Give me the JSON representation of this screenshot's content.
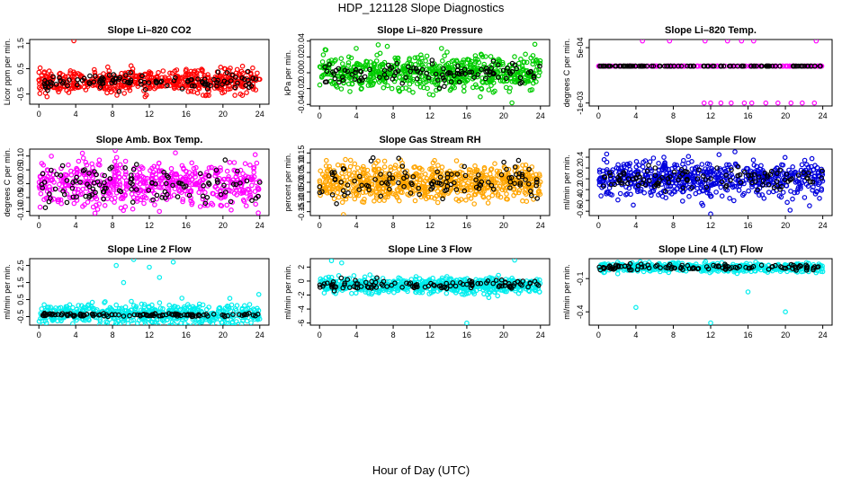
{
  "page": {
    "title": "HDP_121128  Slope Diagnostics",
    "xlabel": "Hour of Day (UTC)"
  },
  "chart_data": [
    {
      "type": "scatter",
      "title": "Slope Li–820 CO2",
      "ylabel": "Licor ppm per min.",
      "ylim": [
        -0.9,
        1.65
      ],
      "yticks": [
        -0.5,
        0.5,
        1.5
      ],
      "yticklabels": [
        "-0.5",
        "0.5",
        "1.5"
      ],
      "xlim": [
        -1,
        25
      ],
      "xticks": [
        0,
        4,
        8,
        12,
        16,
        20,
        24
      ],
      "xticklabels": [
        "0",
        "4",
        "8",
        "12",
        "16",
        "20",
        "24"
      ],
      "series": [
        {
          "color": "#ff0000",
          "center": 0.0,
          "spread": 0.22,
          "n": 520
        },
        {
          "color": "#000000",
          "center": 0.0,
          "spread": 0.15,
          "n": 110
        }
      ],
      "outliers": [
        {
          "x": 3.8,
          "y": 1.6,
          "color": "#ff0000"
        },
        {
          "x": 21.3,
          "y": -0.55,
          "color": "#ff0000"
        }
      ]
    },
    {
      "type": "scatter",
      "title": "Slope Li–820 Pressure",
      "ylabel": "kPa per min.",
      "ylim": [
        -0.042,
        0.042
      ],
      "yticks": [
        -0.04,
        -0.02,
        0.0,
        0.02,
        0.04
      ],
      "yticklabels": [
        "-0.04",
        "-0.02",
        "0.00",
        "0.02",
        "0.04"
      ],
      "xlim": [
        -1,
        25
      ],
      "xticks": [
        0,
        4,
        8,
        12,
        16,
        20,
        24
      ],
      "xticklabels": [
        "0",
        "4",
        "8",
        "12",
        "16",
        "20",
        "24"
      ],
      "series": [
        {
          "color": "#00cc00",
          "center": 0.0,
          "spread": 0.011,
          "n": 620
        },
        {
          "color": "#000000",
          "center": 0.0,
          "spread": 0.007,
          "n": 110
        }
      ],
      "outliers": [
        {
          "x": 23.4,
          "y": 0.036,
          "color": "#00cc00"
        },
        {
          "x": 20.9,
          "y": -0.038,
          "color": "#00cc00"
        }
      ]
    },
    {
      "type": "scatter",
      "title": "Slope Li–820 Temp.",
      "ylabel": "degrees C per min.",
      "ylim": [
        -0.00108,
        0.00072
      ],
      "yticks": [
        -0.001,
        0.0005
      ],
      "yticklabels": [
        "-1e-03",
        "5e-04"
      ],
      "xlim": [
        -1,
        25
      ],
      "xticks": [
        0,
        4,
        8,
        12,
        16,
        20,
        24
      ],
      "xticklabels": [
        "0",
        "4",
        "8",
        "12",
        "16",
        "20",
        "24"
      ],
      "series": [
        {
          "color": "#ff00ff",
          "center": 0.0,
          "spread": 0.0,
          "n": 160
        },
        {
          "color": "#000000",
          "center": 0.0,
          "spread": 0.0,
          "n": 110
        }
      ],
      "outliers": [
        {
          "x": 4.7,
          "y": 0.00068,
          "color": "#ff00ff"
        },
        {
          "x": 7.6,
          "y": 0.00068,
          "color": "#ff00ff"
        },
        {
          "x": 11.4,
          "y": 0.00068,
          "color": "#ff00ff"
        },
        {
          "x": 13.8,
          "y": 0.00068,
          "color": "#ff00ff"
        },
        {
          "x": 15.3,
          "y": 0.00068,
          "color": "#ff00ff"
        },
        {
          "x": 16.6,
          "y": 0.00068,
          "color": "#ff00ff"
        },
        {
          "x": 23.3,
          "y": 0.00068,
          "color": "#ff00ff"
        },
        {
          "x": 11.3,
          "y": -0.001,
          "color": "#ff00ff"
        },
        {
          "x": 12.0,
          "y": -0.001,
          "color": "#ff00ff"
        },
        {
          "x": 13.1,
          "y": -0.001,
          "color": "#ff00ff"
        },
        {
          "x": 14.2,
          "y": -0.001,
          "color": "#ff00ff"
        },
        {
          "x": 15.6,
          "y": -0.001,
          "color": "#ff00ff"
        },
        {
          "x": 16.4,
          "y": -0.001,
          "color": "#ff00ff"
        },
        {
          "x": 17.9,
          "y": -0.001,
          "color": "#ff00ff"
        },
        {
          "x": 19.2,
          "y": -0.001,
          "color": "#ff00ff"
        },
        {
          "x": 20.6,
          "y": -0.001,
          "color": "#ff00ff"
        },
        {
          "x": 21.8,
          "y": -0.001,
          "color": "#ff00ff"
        },
        {
          "x": 23.1,
          "y": -0.001,
          "color": "#ff00ff"
        }
      ]
    },
    {
      "type": "scatter",
      "title": "Slope Amb. Box Temp.",
      "ylabel": "degrees C per min.",
      "ylim": [
        -0.115,
        0.125
      ],
      "yticks": [
        -0.1,
        -0.05,
        0.0,
        0.05,
        0.1
      ],
      "yticklabels": [
        "-0.10",
        "-0.05",
        "0.00",
        "0.05",
        "0.10"
      ],
      "xlim": [
        -1,
        25
      ],
      "xticks": [
        0,
        4,
        8,
        12,
        16,
        20,
        24
      ],
      "xticklabels": [
        "0",
        "4",
        "8",
        "12",
        "16",
        "20",
        "24"
      ],
      "series": [
        {
          "color": "#ff00ff",
          "center": 0.0,
          "spread": 0.04,
          "n": 560
        },
        {
          "color": "#000000",
          "center": 0.0,
          "spread": 0.035,
          "n": 110
        }
      ],
      "outliers": [
        {
          "x": 8.3,
          "y": 0.12,
          "color": "#ff00ff"
        },
        {
          "x": 23.5,
          "y": 0.105,
          "color": "#ff00ff"
        }
      ]
    },
    {
      "type": "scatter",
      "title": "Slope Gas Stream RH",
      "ylabel": "percent per min.",
      "ylim": [
        -0.17,
        0.17
      ],
      "yticks": [
        -0.15,
        -0.1,
        -0.05,
        0.0,
        0.05,
        0.1,
        0.15
      ],
      "yticklabels": [
        "-0.15",
        "-0.10",
        "-0.05",
        "0.00",
        "0.05",
        "0.10",
        "0.15"
      ],
      "xlim": [
        -1,
        25
      ],
      "xticks": [
        0,
        4,
        8,
        12,
        16,
        20,
        24
      ],
      "xticklabels": [
        "0",
        "4",
        "8",
        "12",
        "16",
        "20",
        "24"
      ],
      "series": [
        {
          "color": "#ffa500",
          "center": 0.0,
          "spread": 0.045,
          "n": 720
        },
        {
          "color": "#000000",
          "center": 0.0,
          "spread": 0.045,
          "n": 110
        }
      ],
      "outliers": [
        {
          "x": 2.6,
          "y": -0.165,
          "color": "#ffa500"
        }
      ]
    },
    {
      "type": "scatter",
      "title": "Slope Sample Flow",
      "ylabel": "ml/min per min.",
      "ylim": [
        -0.68,
        0.55
      ],
      "yticks": [
        -0.6,
        -0.4,
        -0.2,
        0.0,
        0.2,
        0.4
      ],
      "yticklabels": [
        "-0.6",
        "-0.4",
        "-0.2",
        "0.0",
        "0.2",
        "0.4"
      ],
      "xlim": [
        -1,
        25
      ],
      "xticks": [
        0,
        4,
        8,
        12,
        16,
        20,
        24
      ],
      "xticklabels": [
        "0",
        "4",
        "8",
        "12",
        "16",
        "20",
        "24"
      ],
      "series": [
        {
          "color": "#0000dd",
          "center": 0.0,
          "spread": 0.17,
          "n": 600
        },
        {
          "color": "#000000",
          "center": 0.0,
          "spread": 0.1,
          "n": 110
        }
      ],
      "outliers": [
        {
          "x": 12.0,
          "y": -0.65,
          "color": "#0000dd"
        },
        {
          "x": 20.5,
          "y": -0.58,
          "color": "#0000dd"
        },
        {
          "x": 14.6,
          "y": 0.5,
          "color": "#0000dd"
        }
      ]
    },
    {
      "type": "scatter",
      "title": "Slope Line 2 Flow",
      "ylabel": "ml/min per min.",
      "ylim": [
        -1.0,
        2.9
      ],
      "yticks": [
        -0.5,
        0.5,
        1.5,
        2.5
      ],
      "yticklabels": [
        "-0.5",
        "0.5",
        "1.5",
        "2.5"
      ],
      "xlim": [
        -1,
        25
      ],
      "xticks": [
        0,
        4,
        8,
        12,
        16,
        20,
        24
      ],
      "xticklabels": [
        "0",
        "4",
        "8",
        "12",
        "16",
        "20",
        "24"
      ],
      "series": [
        {
          "color": "#00eeee",
          "center": -0.35,
          "spread": 0.3,
          "n": 520
        },
        {
          "color": "#000000",
          "center": -0.4,
          "spread": 0.05,
          "n": 110
        }
      ],
      "outliers": [
        {
          "x": 8.4,
          "y": 2.5,
          "color": "#00eeee"
        },
        {
          "x": 10.3,
          "y": 2.85,
          "color": "#00eeee"
        },
        {
          "x": 12.0,
          "y": 2.4,
          "color": "#00eeee"
        },
        {
          "x": 13.1,
          "y": 1.8,
          "color": "#00eeee"
        },
        {
          "x": 14.6,
          "y": 2.7,
          "color": "#00eeee"
        },
        {
          "x": 9.2,
          "y": 1.5,
          "color": "#00eeee"
        },
        {
          "x": 15.9,
          "y": -0.9,
          "color": "#00eeee"
        },
        {
          "x": 23.9,
          "y": 0.8,
          "color": "#00eeee"
        }
      ]
    },
    {
      "type": "scatter",
      "title": "Slope Line 3 Flow",
      "ylabel": "ml/min per min.",
      "ylim": [
        -6.3,
        3.2
      ],
      "yticks": [
        -6,
        -4,
        -2,
        0,
        2
      ],
      "yticklabels": [
        "-6",
        "-4",
        "-2",
        "0",
        "2"
      ],
      "xlim": [
        -1,
        25
      ],
      "xticks": [
        0,
        4,
        8,
        12,
        16,
        20,
        24
      ],
      "xticklabels": [
        "0",
        "4",
        "8",
        "12",
        "16",
        "20",
        "24"
      ],
      "series": [
        {
          "color": "#00eeee",
          "center": -0.6,
          "spread": 0.55,
          "n": 620
        },
        {
          "color": "#000000",
          "center": -0.5,
          "spread": 0.35,
          "n": 110
        }
      ],
      "outliers": [
        {
          "x": 16.0,
          "y": -6.0,
          "color": "#00eeee"
        },
        {
          "x": 1.3,
          "y": 2.9,
          "color": "#00eeee"
        },
        {
          "x": 2.4,
          "y": 2.6,
          "color": "#00eeee"
        },
        {
          "x": 21.2,
          "y": 3.0,
          "color": "#00eeee"
        }
      ]
    },
    {
      "type": "scatter",
      "title": "Slope Line 4 (LT) Flow",
      "ylabel": "ml/min per min.",
      "ylim": [
        -0.52,
        0.08
      ],
      "yticks": [
        -0.4,
        -0.1
      ],
      "yticklabels": [
        "-0.4",
        "-0.1"
      ],
      "xlim": [
        -1,
        25
      ],
      "xticks": [
        0,
        4,
        8,
        12,
        16,
        20,
        24
      ],
      "xticklabels": [
        "0",
        "4",
        "8",
        "12",
        "16",
        "20",
        "24"
      ],
      "series": [
        {
          "color": "#00eeee",
          "center": 0.0,
          "spread": 0.02,
          "n": 460
        },
        {
          "color": "#000000",
          "center": 0.0,
          "spread": 0.013,
          "n": 110
        }
      ],
      "outliers": [
        {
          "x": 4.0,
          "y": -0.36,
          "color": "#00eeee"
        },
        {
          "x": 12.0,
          "y": -0.5,
          "color": "#00eeee"
        },
        {
          "x": 16.0,
          "y": -0.22,
          "color": "#00eeee"
        },
        {
          "x": 20.0,
          "y": -0.4,
          "color": "#00eeee"
        }
      ]
    }
  ]
}
